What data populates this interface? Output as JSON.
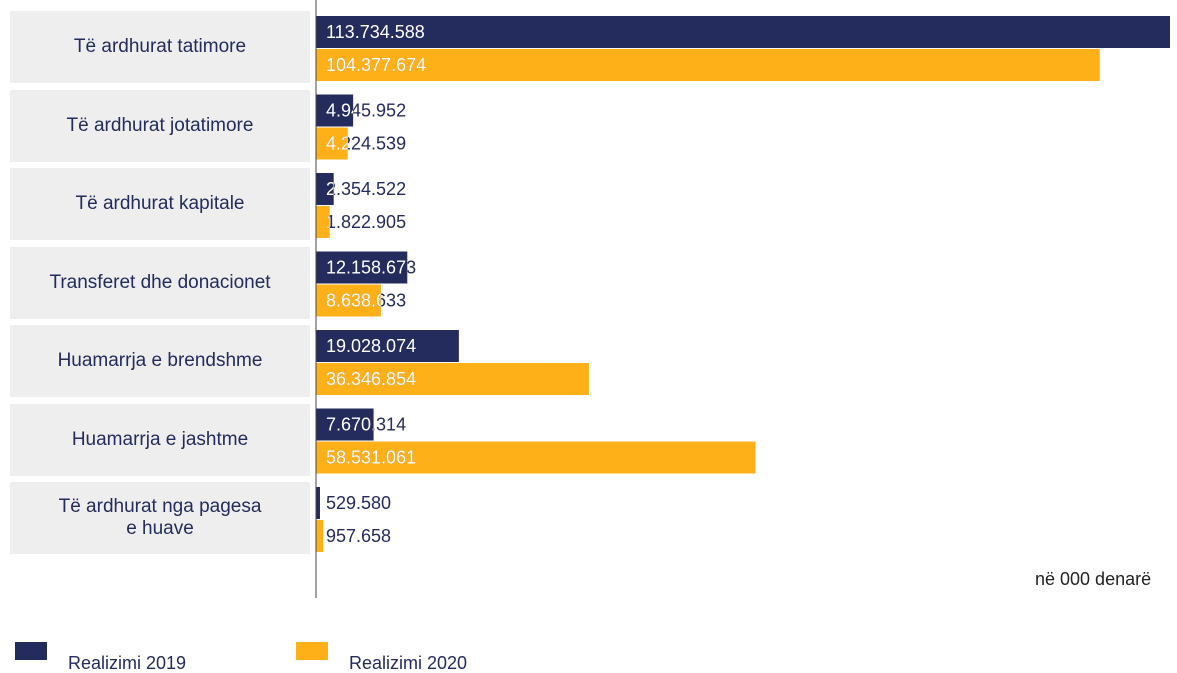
{
  "chart_data": {
    "type": "bar",
    "orientation": "horizontal",
    "categories": [
      "Të ardhurat tatimore",
      "Të ardhurat jotatimore",
      "Të ardhurat kapitale",
      "Transferet dhe donacionet",
      "Huamarrja e brendshme",
      "Huamarrja e jashtme",
      "Të ardhurat nga pagesa\ne huave"
    ],
    "series": [
      {
        "name": "Realizimi 2019",
        "color": "#232c5c",
        "values": [
          113734588,
          4945952,
          2354522,
          12158673,
          19028074,
          7670314,
          529580
        ],
        "value_labels": [
          "113.734.588",
          "4.945.952",
          "2.354.522",
          "12.158.673",
          "19.028.074",
          "7.670.314",
          "529.580"
        ]
      },
      {
        "name": "Realizimi  2020",
        "color": "#fdb018",
        "values": [
          104377674,
          4224539,
          1822905,
          8638633,
          36346854,
          58531061,
          957658
        ],
        "value_labels": [
          "104.377.674",
          "4.224.539",
          "1.822.905",
          "8.638.633",
          "36.346.854",
          "58.531.061",
          "957.658"
        ]
      }
    ],
    "annotation": "në 000 denarë"
  }
}
